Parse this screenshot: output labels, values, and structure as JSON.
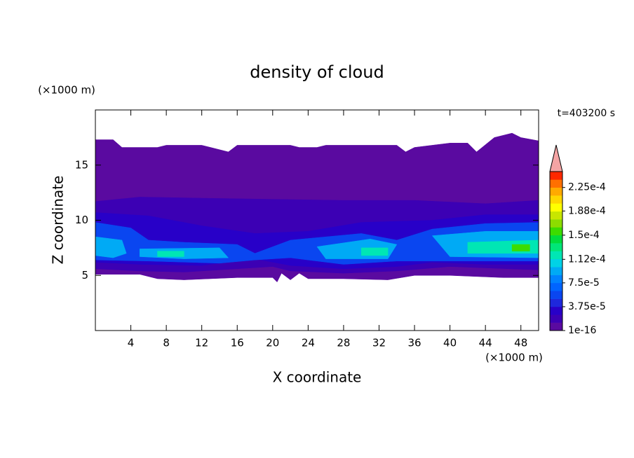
{
  "chart_data": {
    "type": "contour",
    "title": "density of cloud",
    "x_label": "X coordinate",
    "y_label": "Z coordinate",
    "x_unit": "(×1000 m)",
    "y_unit": "(×1000 m)",
    "time_label": "t=403200 s",
    "xlim": [
      0,
      50
    ],
    "ylim": [
      0,
      20
    ],
    "xticks": [
      4,
      8,
      12,
      16,
      20,
      24,
      28,
      32,
      36,
      40,
      44,
      48
    ],
    "yticks": [
      5,
      10,
      15
    ],
    "colorbar": {
      "lim": [
        1e-16,
        0.00025
      ],
      "colors": [
        "#5a0aa0",
        "#3c00b4",
        "#2800c8",
        "#1e28dc",
        "#0a46f0",
        "#0064ff",
        "#0082ff",
        "#00aaf5",
        "#00d2e6",
        "#00e6b4",
        "#00e678",
        "#00dc3c",
        "#3cdc00",
        "#8cdc00",
        "#c8e600",
        "#ffff00",
        "#ffd700",
        "#ffaa00",
        "#ff7000",
        "#ff2800"
      ],
      "extend_color": "#f4a4a4",
      "ticks": [
        {
          "value": 1e-16,
          "label": "1e-16"
        },
        {
          "value": 3.75e-05,
          "label": "3.75e-5"
        },
        {
          "value": 7.5e-05,
          "label": "7.5e-5"
        },
        {
          "value": 0.000112,
          "label": "1.12e-4"
        },
        {
          "value": 0.00015,
          "label": "1.5e-4"
        },
        {
          "value": 0.000188,
          "label": "1.88e-4"
        },
        {
          "value": 0.000225,
          "label": "2.25e-4"
        }
      ]
    },
    "layers": [
      {
        "color": "#5a0aa0",
        "x": [
          0,
          2,
          3,
          7,
          8,
          12,
          13,
          15,
          16,
          22,
          23,
          25,
          26,
          34,
          35,
          36,
          38,
          40,
          42,
          43,
          45,
          47,
          48,
          50,
          50,
          46,
          40,
          36,
          33,
          28,
          24,
          23,
          22,
          21,
          20.5,
          20,
          16,
          10,
          7,
          5,
          0
        ],
        "y": [
          17.3,
          17.3,
          16.6,
          16.6,
          16.8,
          16.8,
          16.6,
          16.2,
          16.8,
          16.8,
          16.6,
          16.6,
          16.8,
          16.8,
          16.2,
          16.6,
          16.8,
          17,
          17,
          16.2,
          17.5,
          17.9,
          17.5,
          17.2,
          4.8,
          4.8,
          5,
          5,
          4.6,
          4.7,
          4.7,
          5.2,
          4.6,
          5.2,
          4.4,
          4.8,
          4.8,
          4.6,
          4.7,
          5.1,
          5.1
        ]
      },
      {
        "color": "#3c00b4",
        "x": [
          0,
          5,
          12,
          20,
          28,
          36,
          44,
          50,
          50,
          40,
          34,
          28,
          22,
          20,
          16,
          10,
          5,
          0
        ],
        "y": [
          11.7,
          12.1,
          12,
          11.9,
          11.8,
          11.8,
          11.5,
          11.8,
          5.5,
          5.8,
          5.4,
          5.2,
          5.4,
          5.8,
          5.6,
          5.3,
          5.4,
          5.6
        ]
      },
      {
        "color": "#2800c8",
        "x": [
          0,
          6,
          12,
          18,
          24,
          30,
          38,
          44,
          50,
          50,
          44,
          38,
          34,
          28,
          22,
          18,
          12,
          5,
          0
        ],
        "y": [
          10.7,
          10.4,
          9.5,
          8.8,
          9,
          9.8,
          10,
          10.5,
          10.5,
          6,
          6,
          6.2,
          5.8,
          5.6,
          5.9,
          6.5,
          5.9,
          6,
          6.2
        ]
      },
      {
        "color": "#0a46f0",
        "x": [
          0,
          4,
          6,
          10,
          16,
          18,
          22,
          30,
          34,
          38,
          44,
          50,
          50,
          42,
          34,
          28,
          22,
          18,
          14,
          6,
          0
        ],
        "y": [
          9.8,
          9.3,
          8.2,
          8,
          7.8,
          7,
          8.2,
          8.8,
          8.2,
          9.2,
          9.7,
          9.8,
          6.3,
          6.3,
          6.3,
          6,
          6.6,
          6.4,
          6.1,
          6.3,
          6.4
        ]
      },
      {
        "color": "#00aaf5",
        "x": [
          0,
          3,
          3.5,
          2,
          0
        ],
        "y": [
          8.5,
          8.2,
          7,
          6.6,
          6.8
        ]
      },
      {
        "color": "#00aaf5",
        "x": [
          5,
          14,
          15,
          10,
          5
        ],
        "y": [
          7.4,
          7.5,
          6.6,
          6.5,
          6.7
        ]
      },
      {
        "color": "#00aaf5",
        "x": [
          25,
          31,
          34,
          33,
          26
        ],
        "y": [
          7.6,
          8.3,
          7.8,
          6.5,
          6.5
        ]
      },
      {
        "color": "#00aaf5",
        "x": [
          38,
          44,
          50,
          50,
          40
        ],
        "y": [
          8.6,
          9,
          9,
          6.6,
          6.7
        ]
      },
      {
        "color": "#00e6b4",
        "x": [
          7,
          10,
          10,
          7
        ],
        "y": [
          7.2,
          7.2,
          6.7,
          6.7
        ]
      },
      {
        "color": "#00e6b4",
        "x": [
          30,
          33,
          33,
          30
        ],
        "y": [
          7.5,
          7.5,
          6.8,
          6.8
        ]
      },
      {
        "color": "#00e6b4",
        "x": [
          42,
          50,
          50,
          42
        ],
        "y": [
          8,
          8.2,
          7,
          7
        ]
      },
      {
        "color": "#3cdc00",
        "x": [
          47,
          49,
          49,
          47
        ],
        "y": [
          7.8,
          7.8,
          7.2,
          7.2
        ]
      }
    ]
  }
}
